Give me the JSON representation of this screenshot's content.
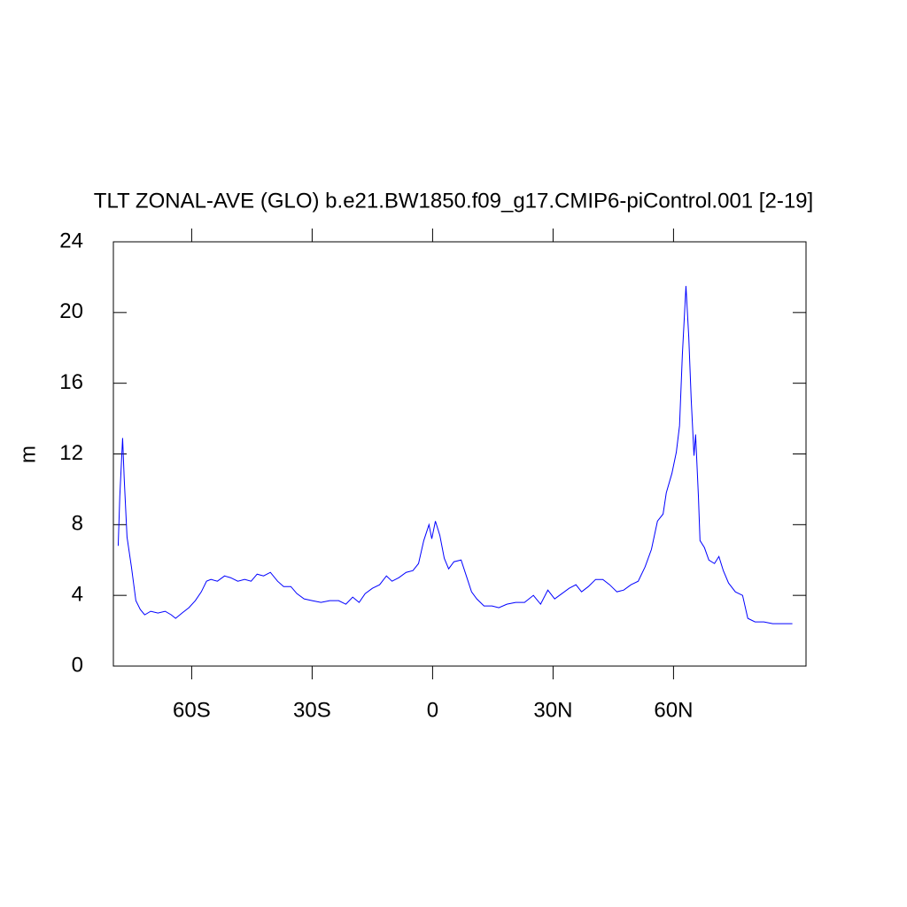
{
  "chart_data": {
    "type": "line",
    "title": "TLT ZONAL-AVE (GLO) b.e21.BW1850.f09_g17.CMIP6-piControl.001 [2-19]",
    "ylabel": "m",
    "x": [
      -78.3,
      -77.9,
      -77.2,
      -76.8,
      -76.1,
      -75.0,
      -73.9,
      -72.8,
      -71.7,
      -70.2,
      -68.4,
      -66.6,
      -65.1,
      -64.0,
      -62.4,
      -60.7,
      -59.1,
      -57.6,
      -56.3,
      -55.2,
      -53.6,
      -51.8,
      -50.3,
      -48.5,
      -46.8,
      -45.2,
      -43.7,
      -42.1,
      -40.4,
      -38.6,
      -37.1,
      -35.3,
      -33.8,
      -32.0,
      -30.0,
      -27.8,
      -25.6,
      -23.4,
      -21.6,
      -19.9,
      -18.3,
      -16.8,
      -15.0,
      -13.2,
      -11.5,
      -10.1,
      -8.4,
      -6.6,
      -4.9,
      -3.5,
      -2.2,
      -0.9,
      -0.2,
      0.7,
      1.8,
      2.9,
      4.0,
      5.3,
      7.1,
      8.4,
      9.7,
      11.0,
      12.8,
      14.8,
      16.5,
      18.5,
      20.7,
      22.9,
      25.1,
      26.9,
      28.7,
      30.4,
      32.2,
      34.0,
      35.7,
      37.1,
      38.8,
      40.6,
      42.4,
      44.1,
      45.9,
      47.6,
      49.4,
      51.2,
      52.9,
      54.5,
      56.0,
      57.4,
      58.2,
      59.6,
      60.7,
      61.5,
      62.2,
      63.1,
      63.8,
      64.4,
      65.1,
      65.5,
      66.2,
      66.6,
      67.7,
      68.8,
      70.2,
      71.3,
      72.4,
      73.7,
      75.4,
      77.2,
      78.5,
      80.3,
      82.5,
      84.7,
      86.9,
      89.6
    ],
    "series": [
      {
        "color": "#0000ff",
        "values": [
          6.8,
          9.6,
          12.9,
          10.6,
          7.3,
          5.6,
          3.7,
          3.2,
          2.9,
          3.1,
          3.0,
          3.1,
          2.9,
          2.7,
          3.0,
          3.3,
          3.7,
          4.2,
          4.8,
          4.9,
          4.8,
          5.1,
          5.0,
          4.8,
          4.9,
          4.8,
          5.2,
          5.1,
          5.3,
          4.8,
          4.5,
          4.5,
          4.1,
          3.8,
          3.7,
          3.6,
          3.7,
          3.7,
          3.5,
          3.9,
          3.6,
          4.1,
          4.4,
          4.6,
          5.1,
          4.8,
          5.0,
          5.3,
          5.4,
          5.8,
          7.1,
          8.0,
          7.2,
          8.2,
          7.4,
          6.1,
          5.5,
          5.9,
          6.0,
          5.1,
          4.2,
          3.8,
          3.4,
          3.4,
          3.3,
          3.5,
          3.6,
          3.6,
          4.0,
          3.5,
          4.3,
          3.8,
          4.1,
          4.4,
          4.6,
          4.2,
          4.5,
          4.9,
          4.9,
          4.6,
          4.2,
          4.3,
          4.6,
          4.8,
          5.6,
          6.6,
          8.2,
          8.6,
          9.8,
          10.9,
          12.1,
          13.6,
          17.6,
          21.5,
          18.6,
          15.1,
          11.9,
          13.1,
          9.6,
          7.1,
          6.7,
          6.0,
          5.8,
          6.2,
          5.4,
          4.7,
          4.2,
          4.0,
          2.7,
          2.5,
          2.5,
          2.4,
          2.4,
          2.4
        ]
      }
    ],
    "xlim": [
      -79.5,
      93
    ],
    "xticks": [
      {
        "value": -60,
        "label": "60S"
      },
      {
        "value": -30,
        "label": "30S"
      },
      0,
      {
        "value": 30,
        "label": "30N"
      },
      {
        "value": 60,
        "label": "60N"
      }
    ],
    "ylim": [
      0,
      24
    ],
    "yticks": [
      0,
      4,
      8,
      12,
      16,
      20,
      24
    ]
  }
}
